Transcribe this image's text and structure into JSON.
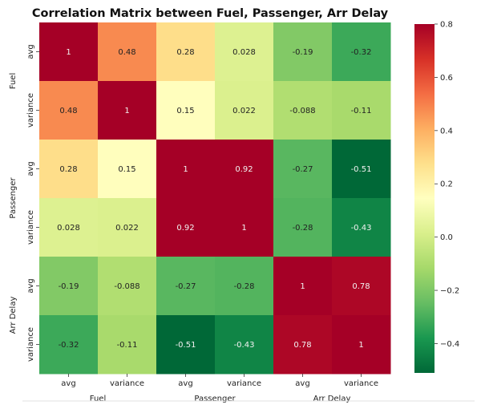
{
  "chart_data": {
    "type": "heatmap",
    "title": "Correlation Matrix between Fuel, Passenger, Arr Delay",
    "groups": [
      "Fuel",
      "Passenger",
      "Arr Delay"
    ],
    "subcategories": [
      "avg",
      "variance"
    ],
    "x_labels": [
      "avg",
      "variance",
      "avg",
      "variance",
      "avg",
      "variance"
    ],
    "y_labels": [
      "avg",
      "variance",
      "avg",
      "variance",
      "avg",
      "variance"
    ],
    "group_labels_x": [
      "Fuel",
      "Passenger",
      "Arr Delay"
    ],
    "group_labels_y": [
      "Fuel",
      "Passenger",
      "Arr Delay"
    ],
    "values": [
      [
        1,
        0.48,
        0.28,
        0.028,
        -0.19,
        -0.32
      ],
      [
        0.48,
        1,
        0.15,
        0.022,
        -0.088,
        -0.11
      ],
      [
        0.28,
        0.15,
        1,
        0.92,
        -0.27,
        -0.51
      ],
      [
        0.028,
        0.022,
        0.92,
        1,
        -0.28,
        -0.43
      ],
      [
        -0.19,
        -0.088,
        -0.27,
        -0.28,
        1,
        0.78
      ],
      [
        -0.32,
        -0.11,
        -0.51,
        -0.43,
        0.78,
        1
      ]
    ],
    "value_labels": [
      [
        "1",
        "0.48",
        "0.28",
        "0.028",
        "-0.19",
        "-0.32"
      ],
      [
        "0.48",
        "1",
        "0.15",
        "0.022",
        "-0.088",
        "-0.11"
      ],
      [
        "0.28",
        "0.15",
        "1",
        "0.92",
        "-0.27",
        "-0.51"
      ],
      [
        "0.028",
        "0.022",
        "0.92",
        "1",
        "-0.28",
        "-0.43"
      ],
      [
        "-0.19",
        "-0.088",
        "-0.27",
        "-0.28",
        "1",
        "0.78"
      ],
      [
        "-0.32",
        "-0.11",
        "-0.51",
        "-0.43",
        "0.78",
        "1"
      ]
    ],
    "colormap": "RdYlGn_r",
    "color_range": [
      -0.51,
      0.8
    ],
    "colorbar_ticks": [
      -0.4,
      -0.2,
      0.0,
      0.2,
      0.4,
      0.6,
      0.8
    ],
    "colorbar_tick_labels": [
      "−0.4",
      "−0.2",
      "0.0",
      "0.2",
      "0.4",
      "0.6",
      "0.8"
    ],
    "grid": false
  }
}
